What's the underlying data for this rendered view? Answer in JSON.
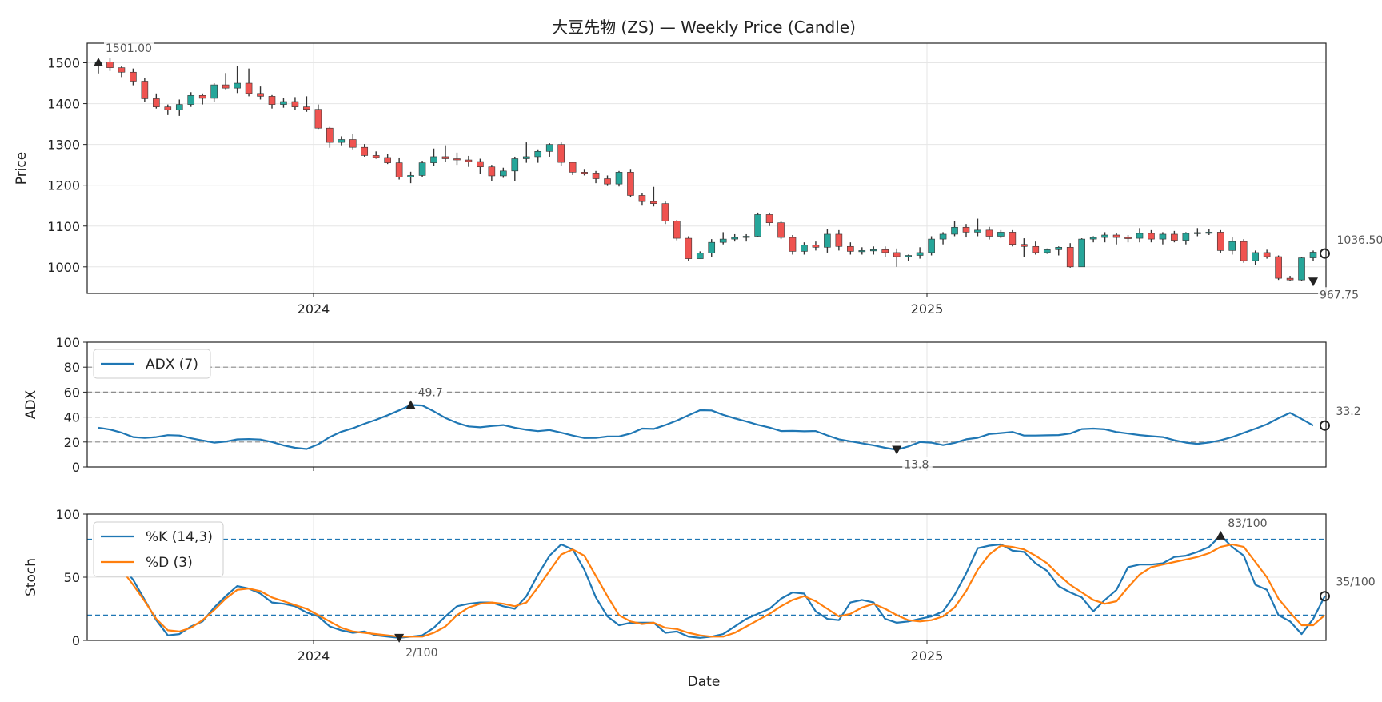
{
  "chart_data": {
    "type": "candlestick",
    "title": "大豆先物 (ZS) — Weekly Price (Candle)",
    "xlabel": "Date",
    "x_ticks": [
      "2024",
      "2025"
    ],
    "price": {
      "ylabel": "Price",
      "ylim": [
        935,
        1548
      ],
      "yticks": [
        1000,
        1100,
        1200,
        1300,
        1400,
        1500
      ],
      "up_color": "#26a69a",
      "down_color": "#ef5350",
      "candles": [
        [
          1498,
          1506,
          1474,
          1502
        ],
        [
          1502,
          1512,
          1480,
          1488
        ],
        [
          1488,
          1492,
          1465,
          1477
        ],
        [
          1477,
          1486,
          1445,
          1455
        ],
        [
          1455,
          1463,
          1405,
          1412
        ],
        [
          1412,
          1425,
          1388,
          1392
        ],
        [
          1392,
          1398,
          1372,
          1385
        ],
        [
          1385,
          1410,
          1370,
          1398
        ],
        [
          1398,
          1428,
          1392,
          1420
        ],
        [
          1420,
          1425,
          1398,
          1413
        ],
        [
          1413,
          1450,
          1404,
          1446
        ],
        [
          1446,
          1475,
          1435,
          1438
        ],
        [
          1438,
          1492,
          1426,
          1450
        ],
        [
          1450,
          1486,
          1418,
          1425
        ],
        [
          1425,
          1442,
          1410,
          1418
        ],
        [
          1418,
          1421,
          1388,
          1398
        ],
        [
          1398,
          1413,
          1390,
          1405
        ],
        [
          1405,
          1416,
          1385,
          1392
        ],
        [
          1392,
          1418,
          1380,
          1386
        ],
        [
          1386,
          1398,
          1338,
          1340
        ],
        [
          1340,
          1343,
          1292,
          1305
        ],
        [
          1305,
          1320,
          1298,
          1312
        ],
        [
          1312,
          1325,
          1288,
          1293
        ],
        [
          1293,
          1301,
          1270,
          1273
        ],
        [
          1273,
          1283,
          1265,
          1268
        ],
        [
          1268,
          1276,
          1252,
          1255
        ],
        [
          1255,
          1268,
          1214,
          1220
        ],
        [
          1220,
          1233,
          1205,
          1224
        ],
        [
          1224,
          1260,
          1220,
          1255
        ],
        [
          1255,
          1290,
          1248,
          1270
        ],
        [
          1270,
          1298,
          1258,
          1265
        ],
        [
          1265,
          1280,
          1250,
          1262
        ],
        [
          1262,
          1272,
          1245,
          1258
        ],
        [
          1258,
          1265,
          1228,
          1245
        ],
        [
          1245,
          1250,
          1210,
          1223
        ],
        [
          1223,
          1243,
          1218,
          1235
        ],
        [
          1235,
          1270,
          1210,
          1265
        ],
        [
          1265,
          1305,
          1255,
          1270
        ],
        [
          1270,
          1288,
          1255,
          1283
        ],
        [
          1283,
          1303,
          1270,
          1300
        ],
        [
          1300,
          1305,
          1248,
          1256
        ],
        [
          1256,
          1258,
          1225,
          1232
        ],
        [
          1232,
          1240,
          1224,
          1230
        ],
        [
          1230,
          1235,
          1205,
          1216
        ],
        [
          1216,
          1224,
          1198,
          1203
        ],
        [
          1203,
          1235,
          1197,
          1232
        ],
        [
          1232,
          1240,
          1170,
          1175
        ],
        [
          1175,
          1180,
          1150,
          1160
        ],
        [
          1160,
          1196,
          1148,
          1155
        ],
        [
          1155,
          1160,
          1105,
          1112
        ],
        [
          1112,
          1115,
          1065,
          1070
        ],
        [
          1070,
          1075,
          1015,
          1020
        ],
        [
          1020,
          1038,
          1020,
          1034
        ],
        [
          1034,
          1068,
          1025,
          1060
        ],
        [
          1060,
          1085,
          1055,
          1068
        ],
        [
          1068,
          1080,
          1062,
          1072
        ],
        [
          1072,
          1080,
          1062,
          1075
        ],
        [
          1075,
          1133,
          1073,
          1128
        ],
        [
          1128,
          1133,
          1100,
          1108
        ],
        [
          1108,
          1113,
          1068,
          1072
        ],
        [
          1072,
          1078,
          1030,
          1038
        ],
        [
          1038,
          1060,
          1030,
          1053
        ],
        [
          1053,
          1062,
          1040,
          1048
        ],
        [
          1048,
          1092,
          1035,
          1080
        ],
        [
          1080,
          1090,
          1040,
          1050
        ],
        [
          1050,
          1060,
          1030,
          1038
        ],
        [
          1038,
          1048,
          1030,
          1040
        ],
        [
          1040,
          1050,
          1030,
          1042
        ],
        [
          1042,
          1050,
          1025,
          1035
        ],
        [
          1035,
          1045,
          1000,
          1025
        ],
        [
          1025,
          1030,
          1015,
          1028
        ],
        [
          1028,
          1048,
          1020,
          1035
        ],
        [
          1035,
          1075,
          1028,
          1068
        ],
        [
          1068,
          1085,
          1055,
          1080
        ],
        [
          1080,
          1112,
          1075,
          1097
        ],
        [
          1097,
          1105,
          1072,
          1085
        ],
        [
          1085,
          1118,
          1075,
          1090
        ],
        [
          1090,
          1098,
          1067,
          1075
        ],
        [
          1075,
          1090,
          1070,
          1085
        ],
        [
          1085,
          1090,
          1050,
          1055
        ],
        [
          1055,
          1070,
          1025,
          1050
        ],
        [
          1050,
          1062,
          1030,
          1035
        ],
        [
          1035,
          1045,
          1032,
          1042
        ],
        [
          1042,
          1050,
          1028,
          1048
        ],
        [
          1048,
          1058,
          998,
          1000
        ],
        [
          1000,
          1070,
          1000,
          1068
        ],
        [
          1068,
          1075,
          1060,
          1072
        ],
        [
          1072,
          1085,
          1060,
          1078
        ],
        [
          1078,
          1082,
          1055,
          1072
        ],
        [
          1072,
          1078,
          1060,
          1070
        ],
        [
          1070,
          1095,
          1060,
          1082
        ],
        [
          1082,
          1090,
          1060,
          1068
        ],
        [
          1068,
          1085,
          1055,
          1080
        ],
        [
          1080,
          1088,
          1060,
          1065
        ],
        [
          1065,
          1085,
          1055,
          1082
        ],
        [
          1082,
          1095,
          1075,
          1084
        ],
        [
          1084,
          1092,
          1078,
          1085
        ],
        [
          1085,
          1090,
          1035,
          1040
        ],
        [
          1040,
          1072,
          1030,
          1062
        ],
        [
          1062,
          1068,
          1010,
          1015
        ],
        [
          1015,
          1040,
          1005,
          1035
        ],
        [
          1035,
          1042,
          1020,
          1025
        ],
        [
          1025,
          1028,
          968,
          972
        ],
        [
          972,
          978,
          965,
          968
        ],
        [
          968,
          1025,
          965,
          1022
        ],
        [
          1022,
          1040,
          1015,
          1036
        ]
      ]
    },
    "adx": {
      "ylabel": "ADX",
      "ylim": [
        0,
        100
      ],
      "yticks": [
        0,
        20,
        40,
        60,
        80,
        100
      ],
      "hlines": [
        20,
        40,
        60,
        80
      ],
      "color": "#1f77b4",
      "legend": [
        "ADX (7)"
      ],
      "values": [
        31.5,
        30,
        27.5,
        24,
        23.3,
        24,
        25.5,
        25.2,
        23,
        21.2,
        19.5,
        20.3,
        22.1,
        22.4,
        22,
        20,
        17.3,
        15.4,
        14.4,
        18.2,
        24,
        28.3,
        31,
        34.6,
        37.8,
        41.5,
        45.4,
        49.7,
        49.3,
        44.6,
        39.3,
        35.3,
        32.5,
        31.8,
        32.8,
        33.6,
        31.5,
        29.8,
        28.7,
        29.6,
        27.5,
        25.2,
        23.2,
        23.3,
        24.4,
        24.5,
        26.8,
        30.8,
        30.5,
        33.6,
        37.2,
        41.4,
        45.5,
        45.3,
        41.8,
        39,
        36.5,
        33.8,
        31.6,
        28.8,
        28.9,
        28.6,
        28.8,
        25.3,
        22.2,
        20.6,
        19,
        17.4,
        15.4,
        13.8,
        16.5,
        20,
        19.5,
        17.5,
        19.3,
        22.2,
        23.4,
        26.4,
        27.2,
        28.1,
        25.2,
        25.2,
        25.4,
        25.6,
        26.8,
        30.4,
        30.8,
        30.2,
        28,
        26.8,
        25.6,
        24.7,
        24,
        21.4,
        19.5,
        18.5,
        19.6,
        21.4,
        24,
        27.4,
        30.7,
        34.2,
        39.1,
        43.4,
        38.5,
        33.2
      ]
    },
    "stoch": {
      "ylabel": "Stoch",
      "ylim": [
        0,
        100
      ],
      "yticks": [
        0,
        50,
        100
      ],
      "hlines": [
        20,
        80
      ],
      "k_color": "#1f77b4",
      "d_color": "#ff7f0e",
      "legend": [
        "%K (14,3)",
        "%D (3)"
      ],
      "k": [
        62,
        61,
        59,
        48,
        32,
        16,
        4,
        5,
        11,
        15,
        26,
        35,
        43,
        41,
        37,
        30,
        29,
        27,
        22,
        19,
        11,
        8,
        6,
        7,
        4,
        3,
        2,
        3,
        4,
        10,
        19,
        27,
        29,
        30,
        30,
        27,
        25,
        35,
        52,
        67,
        76,
        72,
        56,
        34,
        19,
        12,
        14,
        14,
        14,
        6,
        7,
        3,
        2,
        3,
        5,
        11,
        17,
        21,
        25,
        33,
        38,
        37,
        23,
        17,
        16,
        30,
        32,
        30,
        17,
        14,
        15,
        17,
        19,
        23,
        36,
        53,
        73,
        75,
        76,
        71,
        70,
        61,
        55,
        43,
        38,
        34,
        23,
        32,
        40,
        58,
        60,
        60,
        61,
        66,
        67,
        70,
        74,
        83,
        74,
        67,
        44,
        40,
        20,
        15,
        5,
        17,
        35
      ],
      "d": [
        61,
        60,
        56,
        44,
        31,
        17,
        8,
        7,
        10,
        16,
        24,
        33,
        40,
        41,
        39,
        34,
        31,
        28,
        25,
        20,
        15,
        10,
        7,
        6,
        5,
        4,
        3,
        3,
        3,
        6,
        11,
        20,
        26,
        29,
        30,
        29,
        27,
        30,
        42,
        55,
        68,
        72,
        67,
        51,
        35,
        20,
        15,
        13,
        14,
        10,
        9,
        6,
        4,
        3,
        3,
        6,
        11,
        16,
        21,
        27,
        32,
        35,
        31,
        25,
        19,
        21,
        26,
        29,
        25,
        20,
        16,
        15,
        16,
        19,
        26,
        39,
        56,
        68,
        75,
        74,
        72,
        67,
        61,
        52,
        44,
        38,
        32,
        29,
        31,
        42,
        52,
        58,
        60,
        62,
        64,
        66,
        69,
        74,
        76,
        74,
        62,
        50,
        33,
        22,
        12,
        12,
        20
      ],
      "annotations": [
        {
          "label": "83/100",
          "index": 97,
          "value": 83
        },
        {
          "label": "2/100",
          "index": 26,
          "value": 2
        },
        {
          "label": "35/100",
          "index": 106,
          "value": 35
        }
      ]
    },
    "annotations": {
      "price_high": {
        "label": "1501.00",
        "index": 0,
        "value": 1501
      },
      "price_low": {
        "label": "967.75",
        "index": 105,
        "value": 967.75
      },
      "price_last": {
        "label": "1036.50",
        "index": 106,
        "value": 1036.5
      },
      "adx_high": {
        "label": "49.7",
        "index": 27,
        "value": 49.7
      },
      "adx_low": {
        "label": "13.8",
        "index": 69,
        "value": 13.8
      },
      "adx_last": {
        "label": "33.2",
        "index": 106,
        "value": 33.2
      }
    }
  }
}
